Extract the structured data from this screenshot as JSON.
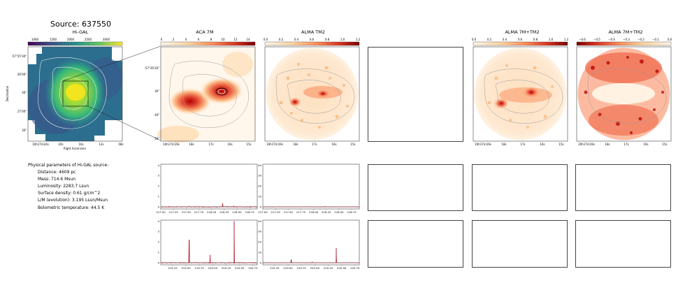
{
  "header": {
    "title": "Source: 637550"
  },
  "panels": {
    "higal": {
      "title": "Hi-GAL",
      "colorbar_ticks": [
        "1000",
        "1500",
        "2000",
        "2500",
        "3000"
      ],
      "y_ticks": [
        "-57°25'30\"",
        "26'00\"",
        "30\"",
        "27'00\"",
        "30\""
      ],
      "x_ticks": [
        "10h17m24s",
        "20s",
        "16s",
        "12s",
        "08s"
      ],
      "xlabel": "Right Ascension",
      "ylabel": "Declination"
    },
    "aca7m": {
      "title": "ACA 7M",
      "colorbar_ticks": [
        "0",
        "2",
        "4",
        "6",
        "8",
        "10",
        "12",
        "14"
      ],
      "y_ticks": [
        "-57°26'20\"",
        "30\"",
        "40\"",
        "50\""
      ],
      "x_ticks": [
        "10h17m19s",
        "18s",
        "17s",
        "16s",
        "15s"
      ]
    },
    "alma_tm2": {
      "title": "ALMA TM2",
      "colorbar_ticks": [
        "0.0",
        "0.2",
        "0.4",
        "0.6",
        "0.8",
        "1.0",
        "1.2"
      ],
      "x_ticks": [
        "10h17m19s",
        "18s",
        "17s",
        "16s",
        "15s"
      ]
    },
    "alma_7m_tm2": {
      "title": "ALMA 7M+TM2",
      "colorbar_ticks": [
        "0.0",
        "0.2",
        "0.4",
        "0.6",
        "0.8",
        "1.0",
        "1.2"
      ],
      "x_ticks": [
        "10h17m19s",
        "18s",
        "17s",
        "16s",
        "15s"
      ]
    },
    "alma_7m_tm2_resid": {
      "title": "ALMA 7M+TM2",
      "colorbar_ticks": [
        "−0.6",
        "−0.5",
        "−0.4",
        "−0.3",
        "−0.2",
        "−0.1",
        "0.0"
      ],
      "x_ticks": [
        "10h17m19s",
        "18s",
        "17s",
        "16s",
        "15s"
      ]
    }
  },
  "params": {
    "heading": "Physical parameters of Hi-GAL source:",
    "lines": [
      "Distance: 4609 pc",
      "Mass: 714.6 Msun",
      "Luminosity: 2283.7 Lsun",
      "Surface density: 0.61 g/cm^2",
      "L/M (evolution): 3.195 Lsun/Msun",
      "Bolometric temperature: 44.5 K"
    ]
  },
  "colors": {
    "spectrum": "#b2182b",
    "zero_line": "#000000",
    "contour": "#9a9a9a",
    "frame": "#444444"
  },
  "chart_data": [
    {
      "type": "line",
      "panel": "ACA 7M spectrum (row 1)",
      "x_ticks": [
        "217.00",
        "217.25",
        "217.50",
        "217.75",
        "218.00",
        "218.25",
        "218.50",
        "218.75"
      ],
      "y_ticks": [
        "0",
        "1",
        "2",
        "3",
        "4"
      ],
      "xlim": [
        217.0,
        218.9
      ],
      "ylim": [
        -0.2,
        4.1
      ],
      "peaks": [
        {
          "x": 218.22,
          "y": 0.35
        },
        {
          "x": 218.44,
          "y": 0.1
        },
        {
          "x": 218.76,
          "y": 0.08
        }
      ],
      "noise": 0.06
    },
    {
      "type": "line",
      "panel": "ALMA TM2 spectrum (row 1)",
      "x_ticks": [
        "217.00",
        "217.25",
        "217.50",
        "217.75",
        "218.00",
        "218.25",
        "218.50",
        "218.75"
      ],
      "y_ticks": [
        "0",
        "10",
        "20",
        "30",
        "40"
      ],
      "xlim": [
        217.0,
        218.9
      ],
      "ylim": [
        -2,
        41
      ],
      "peaks": [
        {
          "x": 218.22,
          "y": 0.6
        }
      ],
      "noise": 0.3
    },
    {
      "type": "line",
      "panel": "ACA 7M spectrum (row 2)",
      "x_ticks": [
        "219.25",
        "219.50",
        "219.75",
        "220.00",
        "220.25",
        "220.50",
        "220.75"
      ],
      "y_ticks": [
        "0",
        "1",
        "2",
        "3",
        "4"
      ],
      "xlim": [
        219.03,
        220.83
      ],
      "ylim": [
        -0.2,
        4.1
      ],
      "peaks": [
        {
          "x": 219.56,
          "y": 2.2
        },
        {
          "x": 219.95,
          "y": 0.75
        },
        {
          "x": 220.4,
          "y": 4.0
        }
      ],
      "noise": 0.06
    },
    {
      "type": "line",
      "panel": "ALMA TM2 spectrum (row 2)",
      "x_ticks": [
        "219.25",
        "219.50",
        "219.75",
        "220.00",
        "220.25",
        "220.50",
        "220.75"
      ],
      "y_ticks": [
        "0",
        "10",
        "20",
        "30",
        "40"
      ],
      "xlim": [
        219.03,
        220.83
      ],
      "ylim": [
        -2,
        41
      ],
      "peaks": [
        {
          "x": 219.56,
          "y": 3.0
        },
        {
          "x": 219.95,
          "y": 1.0
        },
        {
          "x": 220.4,
          "y": 14.0
        }
      ],
      "noise": 0.3
    }
  ]
}
